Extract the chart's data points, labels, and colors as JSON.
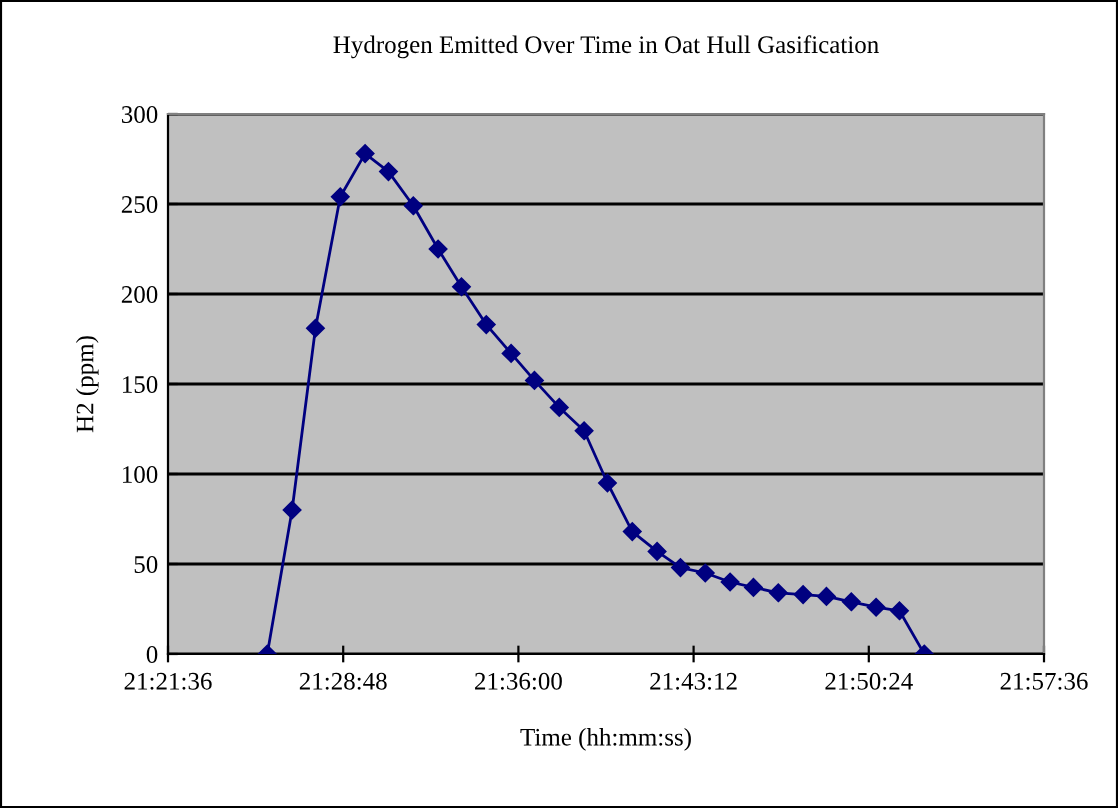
{
  "chart_data": {
    "type": "line",
    "title": "Hydrogen Emitted Over Time in Oat Hull Gasification",
    "xlabel": "Time (hh:mm:ss)",
    "ylabel": "H2 (ppm)",
    "x": [
      21.428,
      21.445,
      21.461,
      21.478,
      21.495,
      21.511,
      21.528,
      21.545,
      21.561,
      21.578,
      21.595,
      21.611,
      21.628,
      21.645,
      21.661,
      21.678,
      21.695,
      21.711,
      21.728,
      21.745,
      21.761,
      21.778,
      21.795,
      21.811,
      21.828,
      21.845,
      21.861,
      21.878
    ],
    "series": [
      {
        "color": "#000080",
        "values": [
          0,
          80,
          181,
          254,
          278,
          268,
          249,
          225,
          204,
          183,
          167,
          152,
          137,
          124,
          95,
          68,
          57,
          48,
          45,
          40,
          37,
          34,
          33,
          32,
          29,
          26,
          24,
          0
        ]
      }
    ],
    "xlim": [
      21.36,
      21.96
    ],
    "xticks": [
      {
        "value": 21.36,
        "label": "21:21:36"
      },
      {
        "value": 21.48,
        "label": "21:28:48"
      },
      {
        "value": 21.6,
        "label": "21:36:00"
      },
      {
        "value": 21.72,
        "label": "21:43:12"
      },
      {
        "value": 21.84,
        "label": "21:50:24"
      },
      {
        "value": 21.96,
        "label": "21:57:36"
      }
    ],
    "ylim": [
      0,
      300
    ],
    "yticks": [
      0,
      50,
      100,
      150,
      200,
      250,
      300
    ],
    "grid": "y",
    "legend": false,
    "marker": "diamond",
    "line_style": "solid"
  }
}
